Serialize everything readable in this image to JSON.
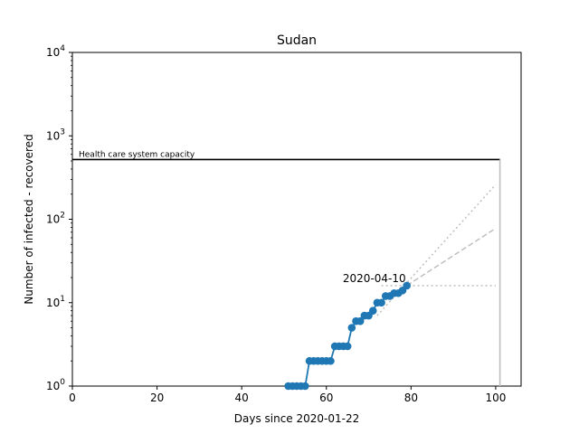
{
  "chart_data": {
    "type": "line",
    "title": "Sudan",
    "xlabel": "Days since 2020-01-22",
    "ylabel": "Number of infected - recovered",
    "xlim": [
      0,
      106
    ],
    "ylim": [
      1,
      10000
    ],
    "yscale": "log",
    "grid": false,
    "x_ticks": [
      0,
      20,
      40,
      60,
      80,
      100
    ],
    "x_tick_labels": [
      "0",
      "20",
      "40",
      "60",
      "80",
      "100"
    ],
    "y_ticks": [
      {
        "value": 1,
        "base": "10",
        "exp": "0"
      },
      {
        "value": 10,
        "base": "10",
        "exp": "1"
      },
      {
        "value": 100,
        "base": "10",
        "exp": "2"
      },
      {
        "value": 1000,
        "base": "10",
        "exp": "3"
      },
      {
        "value": 10000,
        "base": "10",
        "exp": "4"
      }
    ],
    "series": [
      {
        "color": "#1f77b4",
        "marker": "circle",
        "x": [
          51,
          52,
          53,
          54,
          55,
          56,
          57,
          58,
          59,
          60,
          61,
          62,
          63,
          64,
          65,
          66,
          67,
          68,
          69,
          70,
          71,
          72,
          73,
          74,
          75,
          76,
          77,
          78,
          79
        ],
        "y": [
          1,
          1,
          1,
          1,
          1,
          2,
          2,
          2,
          2,
          2,
          2,
          3,
          3,
          3,
          3,
          5,
          6,
          6,
          7,
          7,
          8,
          10,
          10,
          12,
          12,
          13,
          13,
          14,
          16
        ]
      }
    ],
    "projections": [
      {
        "style": "dashed",
        "color": "#bfbfbf",
        "x": [
          79,
          100
        ],
        "y": [
          16,
          78
        ]
      },
      {
        "style": "dotted",
        "color": "#bfbfbf",
        "x": [
          72,
          100
        ],
        "y": [
          7,
          260
        ]
      },
      {
        "style": "dotted",
        "color": "#bfbfbf",
        "x": [
          73,
          100
        ],
        "y": [
          16,
          16
        ]
      }
    ],
    "capacity": {
      "label": "Health care system capacity",
      "value": 520,
      "x_end": 101,
      "color": "#000000"
    },
    "vertical_marker": {
      "x": 101,
      "color": "#bfbfbf"
    },
    "annotations": [
      {
        "text": "2020-04-10",
        "x": 79,
        "y": 16
      }
    ]
  }
}
